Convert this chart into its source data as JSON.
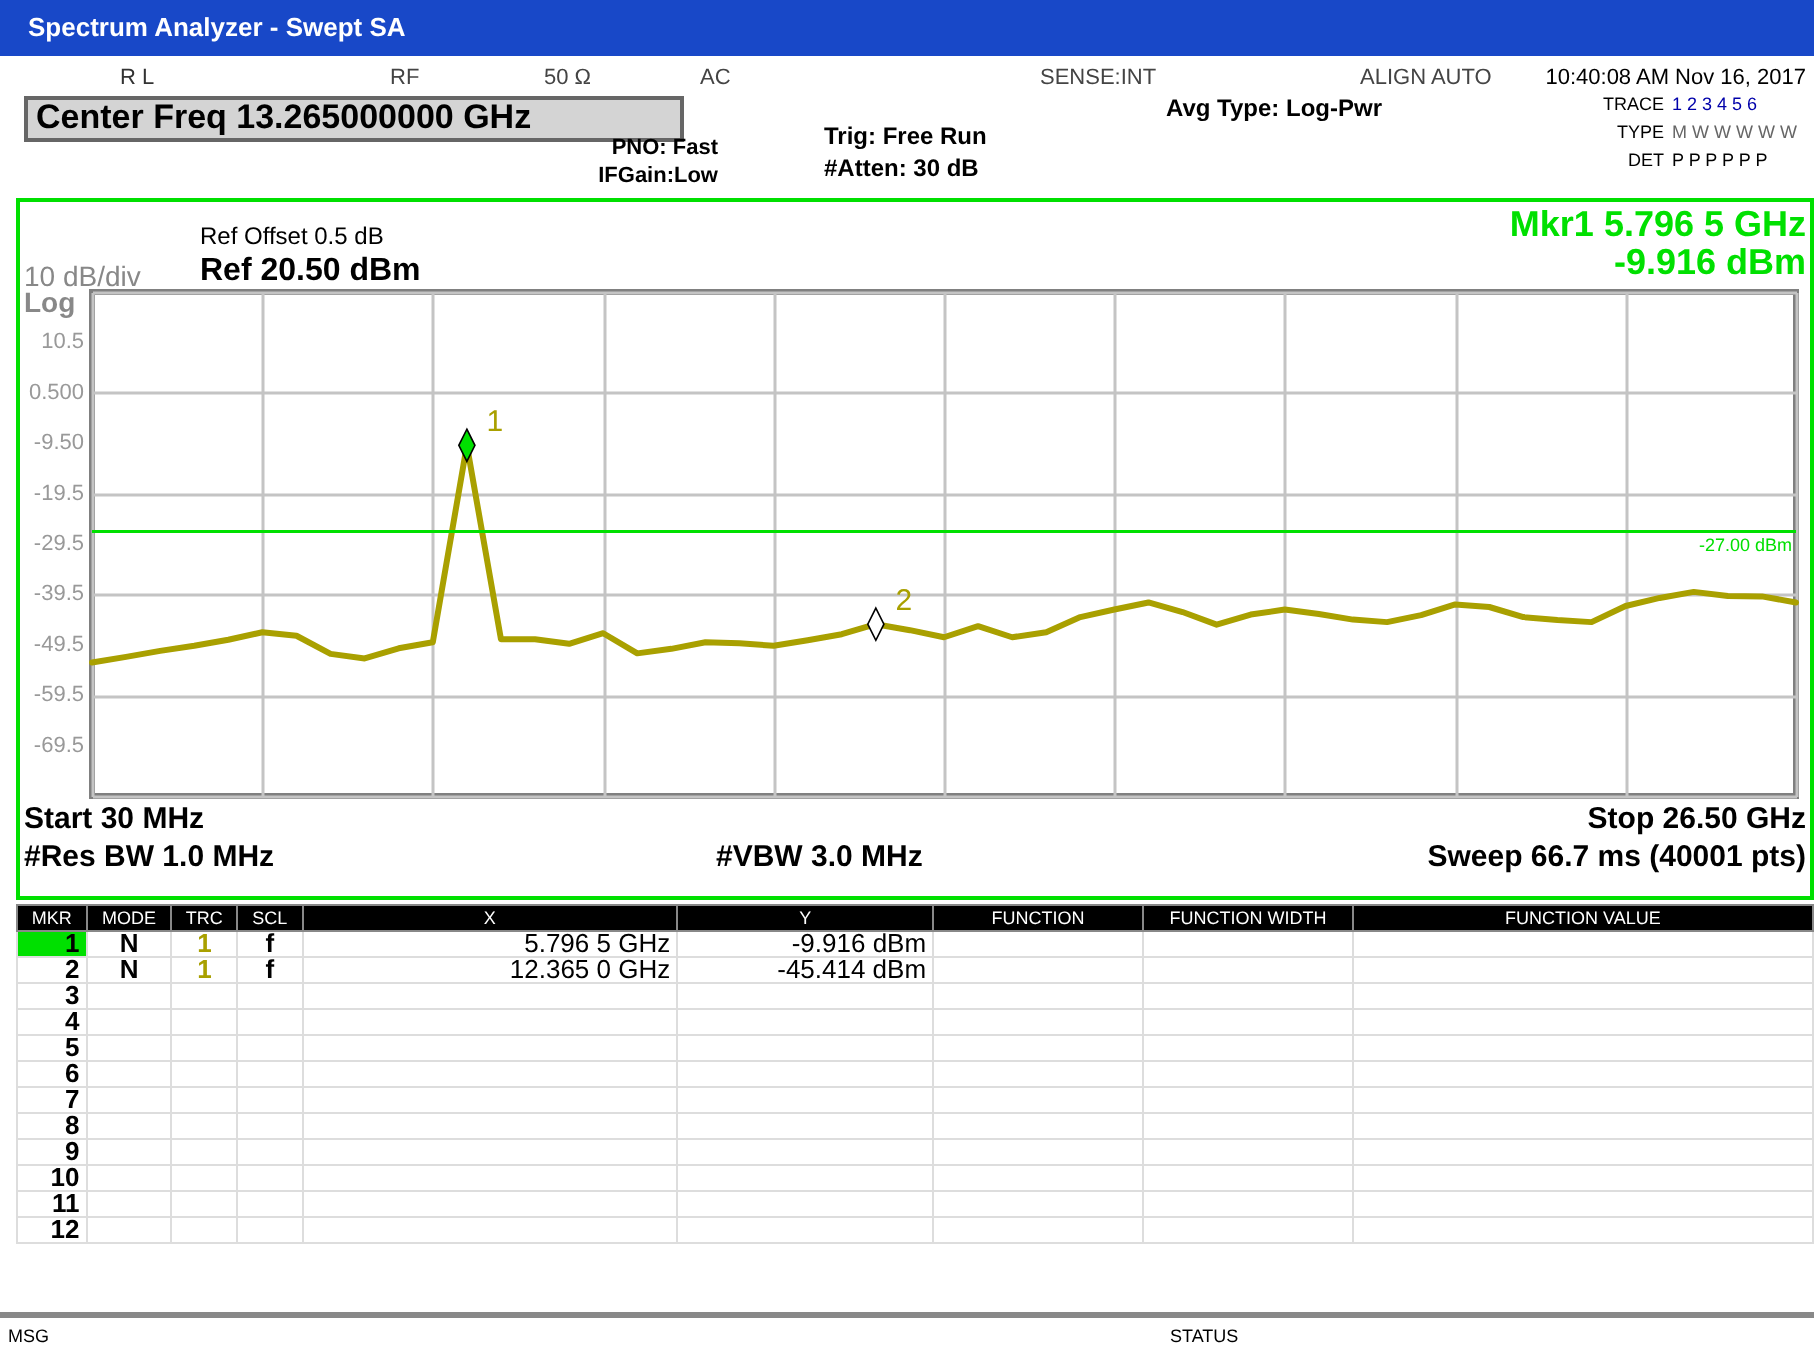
{
  "chart_data": {
    "type": "line",
    "title": "Spectrum Analyzer - Swept SA",
    "categories": [
      null,
      null,
      null,
      null,
      null,
      null,
      null,
      null,
      null,
      null,
      null,
      null,
      null,
      null,
      null,
      null,
      null,
      null,
      null,
      null,
      null,
      null,
      null,
      null,
      null,
      null,
      null,
      null,
      null,
      null,
      null,
      null,
      null,
      null,
      null,
      null,
      null,
      null,
      null,
      null,
      null,
      null,
      null,
      null,
      null,
      null,
      null,
      null,
      null,
      null,
      null
    ],
    "ylim": [
      -79.5,
      20.5
    ],
    "yticks": [
      {
        "value": 20.5,
        "label": null
      },
      10.5,
      {
        "value": 0.5,
        "label": "0.500"
      },
      {
        "value": -9.5,
        "label": "-9.50"
      },
      -19.5,
      -29.5,
      -39.5,
      -49.5,
      -59.5,
      -69.5,
      {
        "value": -79.5,
        "label": null
      }
    ],
    "tick_labels": "y",
    "grid": true,
    "series": [
      {
        "color": "#a9a000",
        "values": [
          -53.0,
          -51.9,
          -50.7,
          -49.7,
          -48.5,
          -47.0,
          -47.7,
          -51.3,
          -52.2,
          -50.2,
          -49.0,
          -9.916,
          -48.4,
          -48.4,
          -49.3,
          -47.2,
          -51.2,
          -50.3,
          -49.0,
          -49.2,
          -49.7,
          -48.6,
          -47.4,
          -45.414,
          -46.6,
          -48.0,
          -45.8,
          -48.0,
          -47.0,
          -44.0,
          -42.5,
          -41.1,
          -43.0,
          -45.5,
          -43.5,
          -42.5,
          -43.4,
          -44.5,
          -45.0,
          -43.6,
          -41.5,
          -42.0,
          -44.0,
          -44.6,
          -45.0,
          -41.8,
          -40.2,
          -39.0,
          -39.8,
          -39.9,
          -41.1
        ]
      },
      {
        "type": "scatter",
        "color": "#00e000",
        "marker": "diamond",
        "values": [
          null,
          null,
          null,
          null,
          null,
          null,
          null,
          null,
          null,
          null,
          null,
          -9.916,
          null,
          null,
          null,
          null,
          null,
          null,
          null,
          null,
          null,
          null,
          null,
          null,
          null,
          null,
          null,
          null,
          null,
          null,
          null,
          null,
          null,
          null,
          null,
          null,
          null,
          null,
          null,
          null,
          null,
          null,
          null,
          null,
          null,
          null,
          null,
          null,
          null,
          null,
          null
        ]
      },
      {
        "type": "scatter",
        "color": "#ffffff",
        "marker": "diamond",
        "values": [
          null,
          null,
          null,
          null,
          null,
          null,
          null,
          null,
          null,
          null,
          null,
          null,
          null,
          null,
          null,
          null,
          null,
          null,
          null,
          null,
          null,
          null,
          null,
          -45.414,
          null,
          null,
          null,
          null,
          null,
          null,
          null,
          null,
          null,
          null,
          null,
          null,
          null,
          null,
          null,
          null,
          null,
          null,
          null,
          null,
          null,
          null,
          null,
          null,
          null,
          null,
          null
        ]
      }
    ],
    "ref_lines": [
      {
        "axis": "y",
        "value": -27,
        "label": "-27.00 dBm",
        "color": "#00e000"
      }
    ],
    "annotations": [
      "R L",
      "RF",
      "50 Ω",
      "AC",
      "SENSE:INT",
      "ALIGN AUTO",
      "10:40:08 AM Nov 16, 2017",
      "Center Freq 13.265000000 GHz",
      "PNO: Fast",
      "IFGain:Low",
      "Trig: Free Run",
      "#Atten: 30 dB",
      "Avg Type: Log-Pwr",
      "TRACE",
      "1 2 3 4 5 6",
      "TYPE",
      "M W W W W W",
      "DET",
      "P P P P P P",
      "Ref Offset 0.5 dB",
      "Ref 20.50 dBm",
      "10 dB/div",
      "Log",
      "Mkr1 5.796 5 GHz",
      "-9.916 dBm",
      "Start 30 MHz",
      "Stop 26.50 GHz",
      "#Res BW 1.0 MHz",
      "#VBW 3.0 MHz",
      "Sweep 66.7 ms (40001 pts)",
      "MKR",
      "MODE",
      "TRC",
      "SCL",
      "X",
      "Y",
      "FUNCTION",
      "FUNCTION WIDTH",
      "FUNCTION VALUE",
      "1",
      "N",
      "1",
      "f",
      "5.796 5 GHz",
      "-9.916 dBm",
      "2",
      "N",
      "1",
      "f",
      "12.365 0 GHz",
      "-45.414 dBm",
      "3",
      "4",
      "5",
      "6",
      "7",
      "8",
      "9",
      "10",
      "11",
      "12",
      "MSG",
      "STATUS",
      "1",
      "2"
    ]
  }
}
